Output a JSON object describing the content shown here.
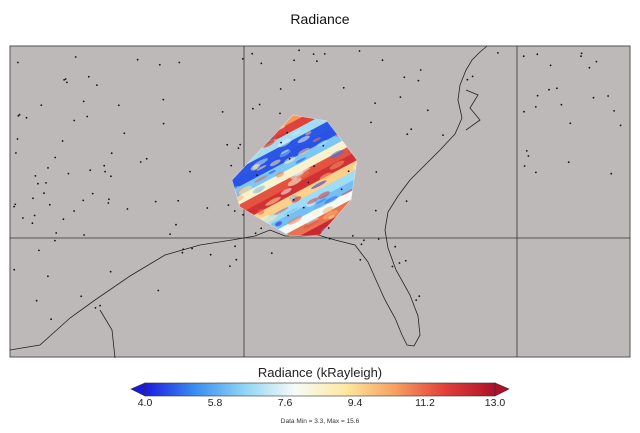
{
  "title": "Radiance",
  "colorbar": {
    "label": "Radiance (kRayleigh)",
    "min": 4.0,
    "max": 13.0,
    "ticks": [
      "4.0",
      "5.8",
      "7.6",
      "9.4",
      "11.2",
      "13.0"
    ],
    "colors": [
      "#1a1adc",
      "#3a8ef0",
      "#8fd6f5",
      "#f7fbf7",
      "#fde9a0",
      "#f6a060",
      "#e0403a",
      "#b0102a"
    ],
    "extend": "both"
  },
  "stats": "Data Min = 3.3, Max = 15.6",
  "map": {
    "land_color": "#bdb9b9",
    "gridlines": true,
    "region": "Southeastern United States / Gulf of Mexico",
    "markers": "city-points"
  }
}
